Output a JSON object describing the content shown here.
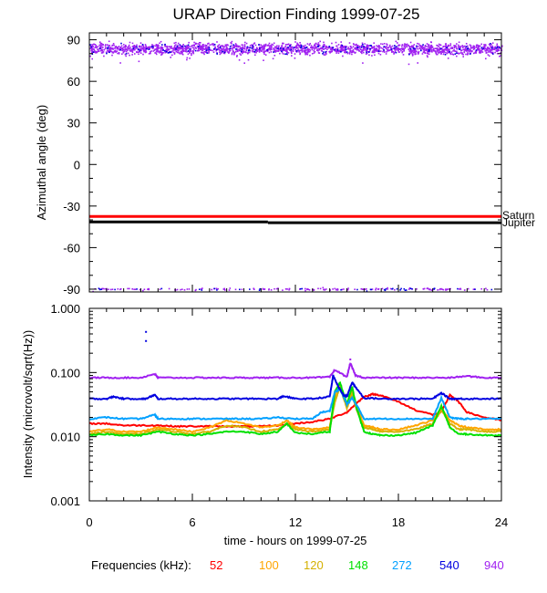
{
  "title": "URAP Direction Finding  1999-07-25",
  "frequency_legend": {
    "label": "Frequencies (kHz):",
    "items": [
      {
        "value": "52",
        "color": "#ff0000"
      },
      {
        "value": "100",
        "color": "#ffa500"
      },
      {
        "value": "120",
        "color": "#d4b000"
      },
      {
        "value": "148",
        "color": "#00e000"
      },
      {
        "value": "272",
        "color": "#00a0ff"
      },
      {
        "value": "540",
        "color": "#0000e0"
      },
      {
        "value": "940",
        "color": "#a020f0"
      }
    ]
  },
  "chart_data": [
    {
      "type": "scatter",
      "panel": "azimuth",
      "ylabel": "Azimuthal angle (deg)",
      "xlabel": "",
      "xlim": [
        0,
        24
      ],
      "ylim": [
        -92,
        95
      ],
      "x_ticks": [
        0,
        6,
        12,
        18,
        24
      ],
      "y_ticks": [
        -90,
        -60,
        -30,
        0,
        30,
        60,
        90
      ],
      "y_tick_labels": [
        "-90",
        "-60",
        "-30",
        "0",
        "30",
        "60",
        "90"
      ],
      "x_tick_labels_visible": false,
      "annotations": [
        "Saturn",
        "Jupiter"
      ],
      "reference_lines": [
        {
          "name": "Saturn",
          "color": "#ff0000",
          "segments": [
            {
              "x": [
                0,
                24
              ],
              "y": [
                -37.5,
                -37.5
              ]
            }
          ]
        },
        {
          "name": "Jupiter",
          "color": "#000000",
          "segments": [
            {
              "x": [
                0,
                10.4
              ],
              "y": [
                -41.5,
                -41.5
              ]
            },
            {
              "x": [
                10.4,
                24
              ],
              "y": [
                -42,
                -42
              ]
            }
          ]
        }
      ],
      "series": [
        {
          "color": "#a020f0",
          "x_range": [
            0,
            24
          ],
          "y_center": 84,
          "y_spread": 6,
          "count": 1900
        },
        {
          "color": "#0000e0",
          "x_range": [
            0,
            24
          ],
          "y_center": 84,
          "y_spread": 6,
          "count": 150
        },
        {
          "color": "#a020f0",
          "x_range": [
            0,
            24
          ],
          "y_center": -89.5,
          "y_spread": 1.2,
          "count": 160
        },
        {
          "color": "#0000e0",
          "x_range": [
            0,
            24
          ],
          "y_center": -89.5,
          "y_spread": 1.2,
          "count": 40
        }
      ]
    },
    {
      "type": "line",
      "panel": "intensity",
      "ylabel": "Intensity (microvolt/sqrt(Hz))",
      "xlabel": "time - hours on 1999-07-25",
      "xlim": [
        0,
        24
      ],
      "ylim": [
        0.001,
        1.0
      ],
      "yscale": "log",
      "x_ticks": [
        0,
        6,
        12,
        18,
        24
      ],
      "x_tick_labels": [
        "0",
        "6",
        "12",
        "18",
        "24"
      ],
      "y_ticks": [
        0.001,
        0.01,
        0.1,
        1.0
      ],
      "y_tick_labels": [
        "0.001",
        "0.010",
        "0.100",
        "1.000"
      ],
      "series": [
        {
          "name": "52",
          "color": "#ff0000",
          "x": [
            0,
            1,
            2,
            3,
            4,
            5,
            6,
            7,
            8,
            9,
            10,
            11,
            12,
            13,
            14,
            15,
            15.5,
            16,
            16.5,
            17,
            18,
            19,
            20,
            20.5,
            21,
            21.5,
            22,
            23,
            24
          ],
          "y": [
            0.016,
            0.016,
            0.015,
            0.015,
            0.015,
            0.0145,
            0.0145,
            0.0145,
            0.0145,
            0.0145,
            0.0145,
            0.015,
            0.016,
            0.017,
            0.019,
            0.024,
            0.032,
            0.042,
            0.046,
            0.044,
            0.035,
            0.026,
            0.022,
            0.024,
            0.045,
            0.035,
            0.024,
            0.02,
            0.018
          ]
        },
        {
          "name": "100",
          "color": "#ffa500",
          "x": [
            0,
            1,
            2,
            3,
            4,
            5,
            6,
            7,
            8,
            9,
            10,
            11,
            11.5,
            12,
            13,
            14,
            14.3,
            14.6,
            15,
            15.3,
            15.6,
            16,
            16.5,
            17,
            18,
            19,
            20,
            20.5,
            21,
            21.5,
            22,
            23,
            24
          ],
          "y": [
            0.012,
            0.013,
            0.012,
            0.012,
            0.014,
            0.013,
            0.012,
            0.014,
            0.018,
            0.016,
            0.014,
            0.015,
            0.018,
            0.014,
            0.013,
            0.014,
            0.04,
            0.065,
            0.03,
            0.05,
            0.028,
            0.015,
            0.014,
            0.013,
            0.013,
            0.015,
            0.018,
            0.028,
            0.018,
            0.015,
            0.014,
            0.013,
            0.013
          ]
        },
        {
          "name": "120",
          "color": "#d4b000",
          "x": [
            0,
            1,
            2,
            3,
            4,
            5,
            6,
            7,
            8,
            9,
            10,
            11,
            11.5,
            12,
            13,
            14,
            14.3,
            14.6,
            15,
            15.3,
            15.6,
            16,
            16.5,
            17,
            18,
            19,
            20,
            20.5,
            21,
            21.5,
            22,
            23,
            24
          ],
          "y": [
            0.011,
            0.012,
            0.011,
            0.011,
            0.013,
            0.012,
            0.011,
            0.012,
            0.015,
            0.014,
            0.012,
            0.013,
            0.016,
            0.013,
            0.012,
            0.013,
            0.035,
            0.06,
            0.028,
            0.045,
            0.025,
            0.014,
            0.013,
            0.012,
            0.012,
            0.013,
            0.016,
            0.026,
            0.016,
            0.013,
            0.013,
            0.012,
            0.012
          ]
        },
        {
          "name": "148",
          "color": "#00e000",
          "x": [
            0,
            1,
            2,
            3,
            4,
            5,
            6,
            7,
            8,
            9,
            10,
            11,
            11.5,
            12,
            13,
            14,
            14.3,
            14.6,
            15,
            15.3,
            15.6,
            16,
            16.5,
            17,
            18,
            19,
            20,
            20.5,
            21,
            21.5,
            22,
            23,
            24
          ],
          "y": [
            0.0105,
            0.011,
            0.0105,
            0.0105,
            0.012,
            0.011,
            0.0105,
            0.011,
            0.012,
            0.012,
            0.011,
            0.012,
            0.016,
            0.0115,
            0.011,
            0.012,
            0.05,
            0.07,
            0.032,
            0.06,
            0.026,
            0.012,
            0.011,
            0.0105,
            0.0105,
            0.0115,
            0.015,
            0.03,
            0.014,
            0.011,
            0.011,
            0.0105,
            0.0105
          ]
        },
        {
          "name": "272",
          "color": "#00a0ff",
          "x": [
            0,
            1,
            2,
            3,
            3.8,
            4,
            5,
            6,
            7,
            8,
            9,
            10,
            11,
            12,
            13,
            13.5,
            14,
            14.3,
            14.6,
            15,
            15.3,
            15.6,
            16,
            17,
            18,
            19,
            20,
            20.5,
            21,
            21.5,
            22,
            23,
            24
          ],
          "y": [
            0.019,
            0.02,
            0.019,
            0.019,
            0.022,
            0.019,
            0.019,
            0.019,
            0.019,
            0.019,
            0.019,
            0.019,
            0.02,
            0.019,
            0.019,
            0.024,
            0.025,
            0.05,
            0.055,
            0.032,
            0.04,
            0.03,
            0.019,
            0.019,
            0.019,
            0.019,
            0.019,
            0.04,
            0.02,
            0.019,
            0.019,
            0.019,
            0.019
          ]
        },
        {
          "name": "540",
          "color": "#0000e0",
          "x": [
            0,
            1,
            1.4,
            2,
            3,
            3.3,
            3.8,
            4,
            5,
            6,
            7,
            8,
            9,
            10,
            11,
            11.3,
            12,
            13,
            14,
            14.2,
            14.5,
            14.8,
            15,
            15.3,
            15.6,
            16,
            17,
            18,
            19,
            20,
            20.5,
            21,
            21.5,
            22,
            23,
            24
          ],
          "y": [
            0.039,
            0.039,
            0.042,
            0.039,
            0.039,
            0.039,
            0.045,
            0.039,
            0.039,
            0.039,
            0.039,
            0.039,
            0.039,
            0.039,
            0.039,
            0.043,
            0.039,
            0.039,
            0.042,
            0.09,
            0.06,
            0.045,
            0.042,
            0.07,
            0.055,
            0.04,
            0.039,
            0.039,
            0.039,
            0.039,
            0.048,
            0.039,
            0.039,
            0.039,
            0.039,
            0.039
          ]
        },
        {
          "name": "940",
          "color": "#a020f0",
          "x": [
            0,
            1,
            2,
            3,
            3.8,
            4,
            5,
            6,
            7,
            8,
            9,
            10,
            11,
            12,
            13,
            14,
            14.3,
            15,
            15.2,
            15.5,
            16,
            17,
            18,
            19,
            20,
            21,
            22,
            23,
            24
          ],
          "y": [
            0.083,
            0.083,
            0.083,
            0.083,
            0.095,
            0.083,
            0.083,
            0.083,
            0.083,
            0.083,
            0.083,
            0.083,
            0.083,
            0.083,
            0.083,
            0.085,
            0.11,
            0.085,
            0.14,
            0.09,
            0.083,
            0.083,
            0.083,
            0.083,
            0.083,
            0.083,
            0.088,
            0.083,
            0.083
          ]
        }
      ],
      "scatter_points": [
        {
          "color": "#0000e0",
          "x": 3.3,
          "y": 0.43
        },
        {
          "color": "#0000e0",
          "x": 3.3,
          "y": 0.31
        },
        {
          "color": "#a020f0",
          "x": 15.2,
          "y": 0.16
        }
      ]
    }
  ]
}
